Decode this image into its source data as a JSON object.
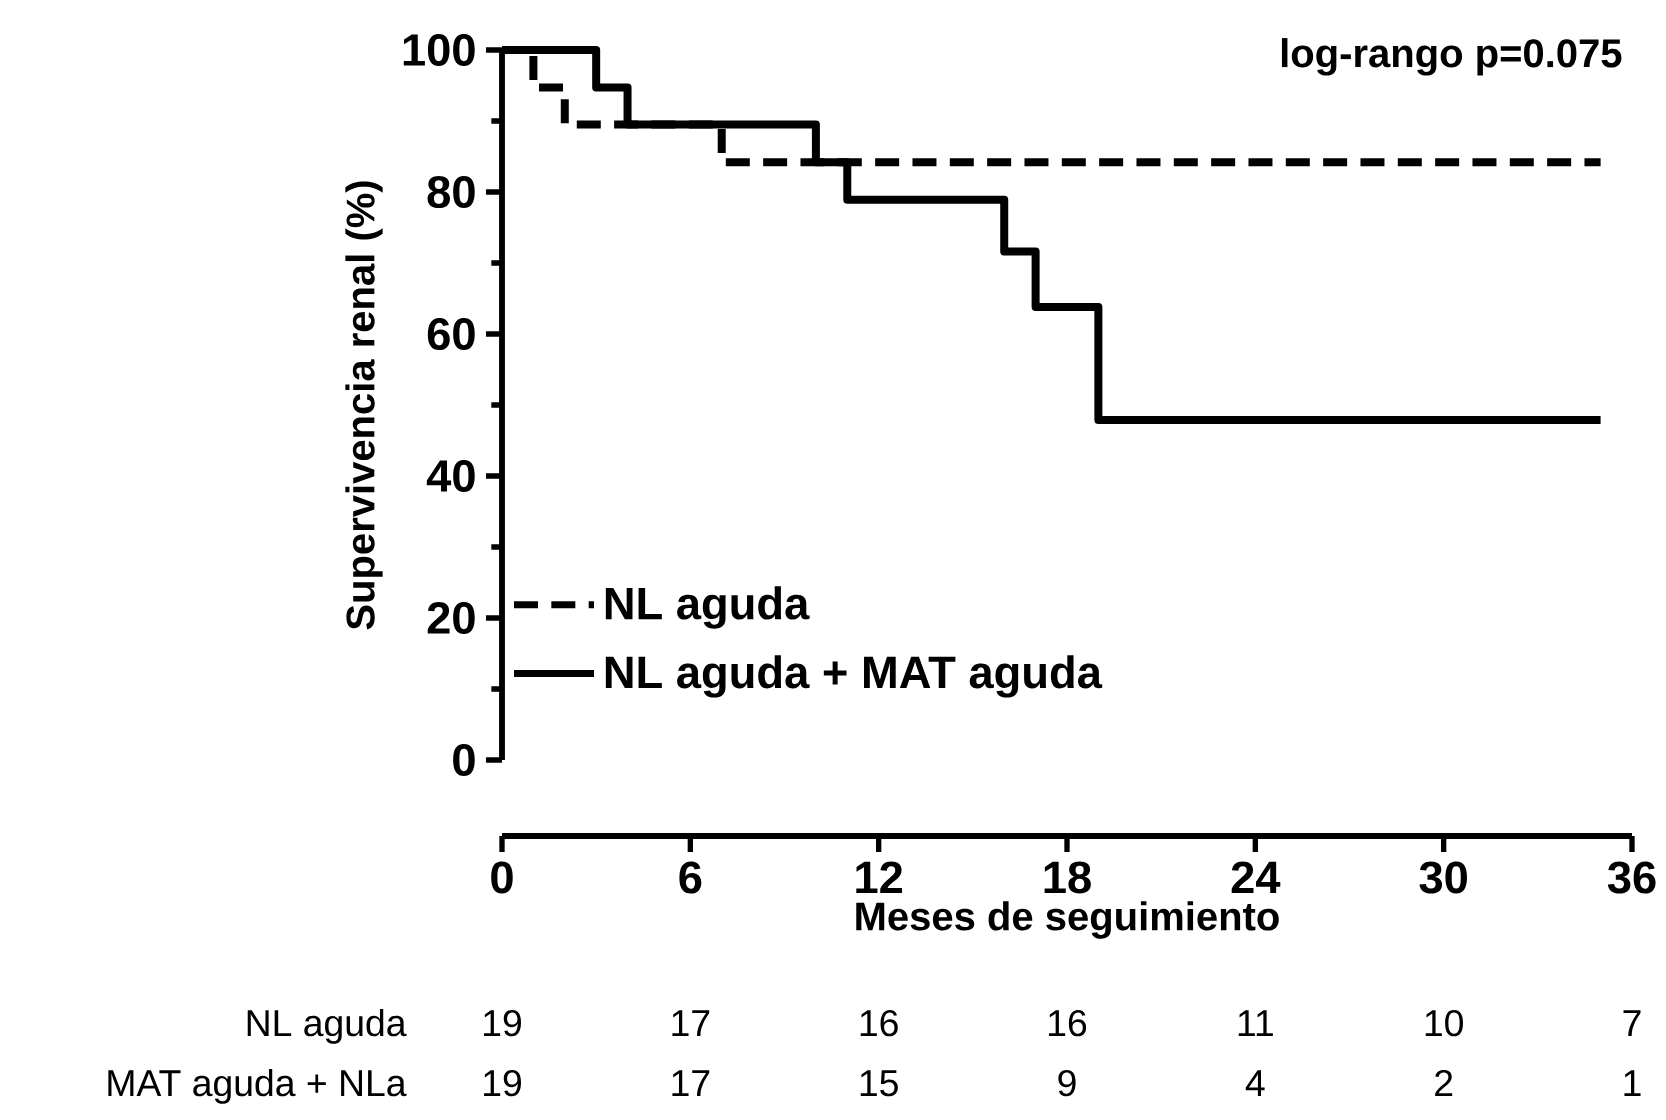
{
  "chart_data": {
    "type": "step",
    "ylabel": "Supervivencia renal (%)",
    "xlabel": "Meses de seguimiento",
    "series": [
      {
        "name": "NL aguda",
        "color": "#000000",
        "line_style": "dashed",
        "x": [
          0,
          1,
          2,
          7,
          35
        ],
        "values": [
          100,
          94.7,
          89.5,
          84.2,
          84.2
        ]
      },
      {
        "name": "NL aguda + MAT aguda",
        "color": "#000000",
        "line_style": "solid",
        "x": [
          0,
          3,
          4,
          10,
          11,
          16,
          17,
          19,
          35
        ],
        "values": [
          100,
          94.7,
          89.5,
          84.2,
          78.9,
          71.6,
          63.8,
          47.9,
          47.9
        ]
      }
    ],
    "xlim": [
      0,
      36
    ],
    "xticks": [
      0,
      6,
      12,
      18,
      24,
      30,
      36
    ],
    "ylim": [
      0,
      100
    ],
    "yticks": [
      0,
      20,
      40,
      60,
      80,
      100
    ],
    "grid": false,
    "legend": "bottom left",
    "marker": "none",
    "annotations": [
      "log-rango p=0.075",
      "NL aguda",
      "19",
      "17",
      "16",
      "16",
      "11",
      "10",
      "7",
      "MAT aguda + NLa",
      "19",
      "17",
      "15",
      "9",
      "4",
      "2",
      "1"
    ]
  }
}
